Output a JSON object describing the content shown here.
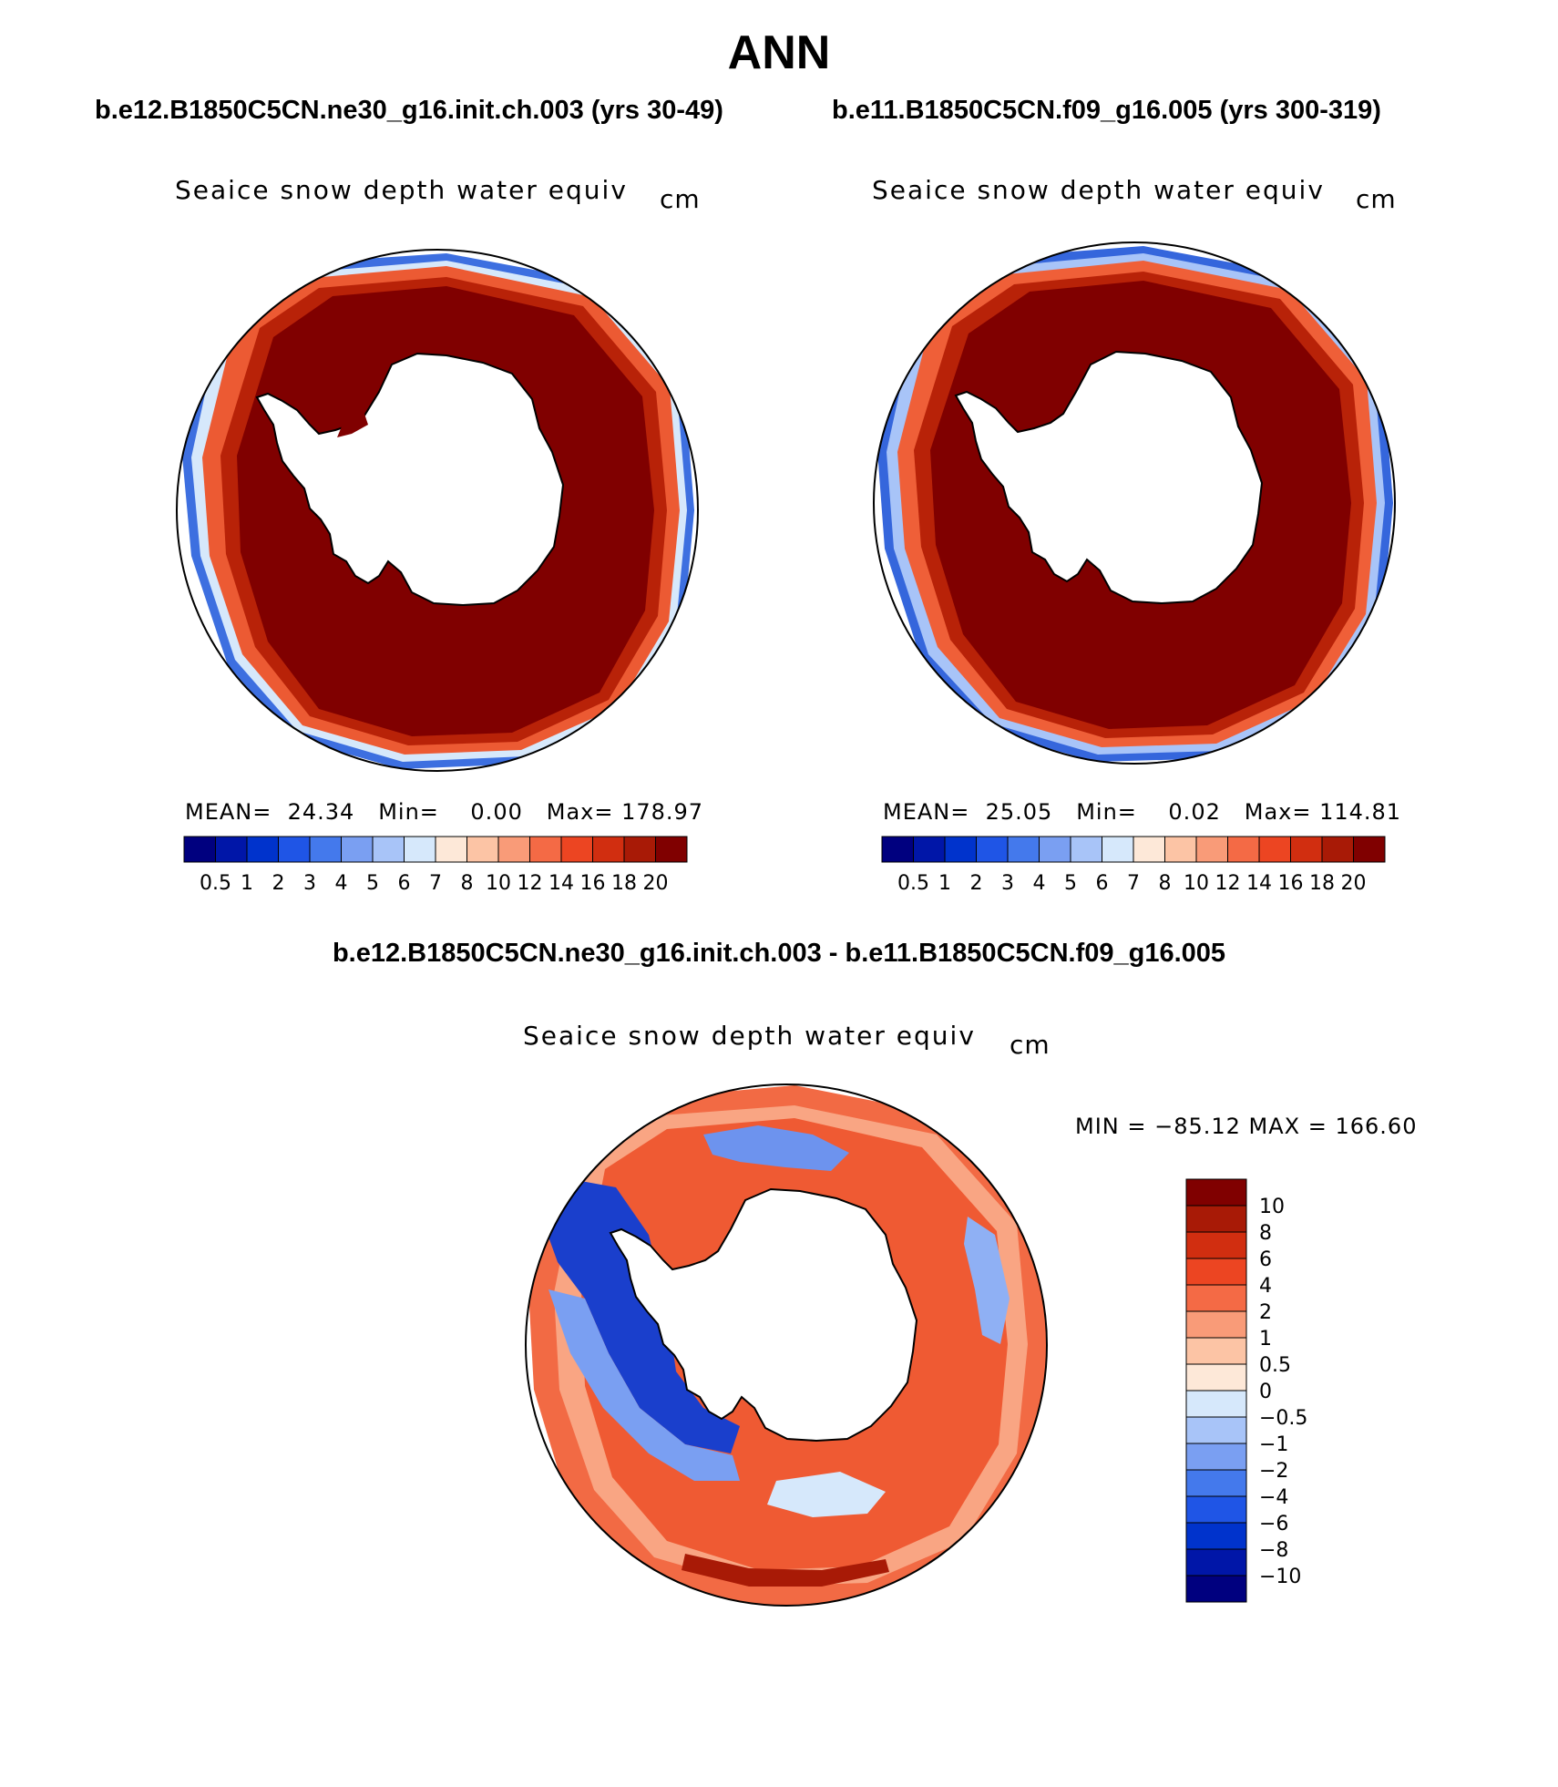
{
  "figure": {
    "title": "ANN",
    "diff_title": "b.e12.B1850C5CN.ne30_g16.init.ch.003 - b.e11.B1850C5CN.f09_g16.005"
  },
  "panels": [
    {
      "case_title": "b.e12.B1850C5CN.ne30_g16.init.ch.003 (yrs 30-49)",
      "variable": "Seaice snow depth water equiv",
      "units": "cm",
      "stats": "MEAN=  24.34   Min=    0.00   Max= 178.97",
      "colorbar_labels": [
        "0.5",
        "1",
        "2",
        "3",
        "4",
        "5",
        "6",
        "7",
        "8",
        "10",
        "12",
        "14",
        "16",
        "18",
        "20"
      ]
    },
    {
      "case_title": "b.e11.B1850C5CN.f09_g16.005 (yrs 300-319)",
      "variable": "Seaice snow depth water equiv",
      "units": "cm",
      "stats": "MEAN=  25.05   Min=    0.02   Max= 114.81",
      "colorbar_labels": [
        "0.5",
        "1",
        "2",
        "3",
        "4",
        "5",
        "6",
        "7",
        "8",
        "10",
        "12",
        "14",
        "16",
        "18",
        "20"
      ]
    }
  ],
  "diff_panel": {
    "variable": "Seaice snow depth water equiv",
    "units": "cm",
    "stats": "MIN = −85.12 MAX = 166.60",
    "colorbar_labels": [
      "10",
      "8",
      "6",
      "4",
      "2",
      "1",
      "0.5",
      "0",
      "−0.5",
      "−1",
      "−2",
      "−4",
      "−6",
      "−8",
      "−10"
    ]
  },
  "colors": {
    "abs_scale": [
      "#00007f",
      "#0016a8",
      "#0033cc",
      "#1f55e6",
      "#4479ec",
      "#7a9ff2",
      "#a8c4f8",
      "#d6e8fb",
      "#fde8d8",
      "#fcc4a5",
      "#f99b78",
      "#f46a45",
      "#ec4522",
      "#d12e10",
      "#a81a06",
      "#800000"
    ],
    "diff_scale": [
      "#800000",
      "#a81a06",
      "#d12e10",
      "#ec4522",
      "#f46a45",
      "#f99b78",
      "#fcc4a5",
      "#fde8d8",
      "#d6e8fb",
      "#a8c4f8",
      "#7a9ff2",
      "#4479ec",
      "#1f55e6",
      "#0033cc",
      "#0016a8",
      "#00007f"
    ],
    "land": "#ffffff",
    "coast": "#000000"
  }
}
